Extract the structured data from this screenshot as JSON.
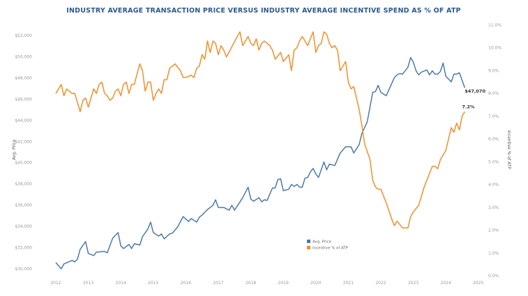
{
  "chart_data": {
    "type": "line",
    "title": "INDUSTRY AVERAGE TRANSACTION PRICE VERSUS INDUSTRY AVERAGE INCENTIVE SPEND AS % OF ATP",
    "xlabel": "",
    "ylabel": "Avg. Price",
    "y2label": "Incentive % of ATP",
    "xlim": [
      "2012",
      "2025"
    ],
    "x_ticks": [
      "2012",
      "2013",
      "2014",
      "2015",
      "2016",
      "2017",
      "2018",
      "2019",
      "2020",
      "2021",
      "2022",
      "2023",
      "2024",
      "2025"
    ],
    "ylim": [
      30000,
      52000
    ],
    "y_ticks": [
      "$30,000",
      "$32,000",
      "$34,000",
      "$36,000",
      "$38,000",
      "$40,000",
      "$42,000",
      "$44,000",
      "$46,000",
      "$48,000",
      "$50,000",
      "$52,000"
    ],
    "y2lim": [
      0,
      11
    ],
    "y2_ticks": [
      "0.0%",
      "1.0%",
      "2.0%",
      "3.0%",
      "4.0%",
      "5.0%",
      "6.0%",
      "7.0%",
      "8.0%",
      "9.0%",
      "10.0%",
      "11.0%"
    ],
    "grid": false,
    "legend": "bottom-center",
    "series": [
      {
        "name": "Avg. Price",
        "axis": "left",
        "color": "#4e79a7",
        "end_label": "$47,070",
        "points": [
          [
            "2012-01",
            30600
          ],
          [
            "2012-03",
            30000
          ],
          [
            "2012-04",
            30460
          ],
          [
            "2012-07",
            30790
          ],
          [
            "2012-08",
            30660
          ],
          [
            "2012-09",
            30920
          ],
          [
            "2012-10",
            31840
          ],
          [
            "2012-12",
            32570
          ],
          [
            "2013-01",
            31450
          ],
          [
            "2013-03",
            31250
          ],
          [
            "2013-04",
            31580
          ],
          [
            "2013-07",
            31640
          ],
          [
            "2013-08",
            31510
          ],
          [
            "2013-10",
            32890
          ],
          [
            "2013-12",
            33420
          ],
          [
            "2014-01",
            32170
          ],
          [
            "2014-02",
            31910
          ],
          [
            "2014-04",
            32300
          ],
          [
            "2014-05",
            31910
          ],
          [
            "2014-06",
            32370
          ],
          [
            "2014-08",
            32240
          ],
          [
            "2014-09",
            33030
          ],
          [
            "2014-11",
            33750
          ],
          [
            "2014-12",
            34410
          ],
          [
            "2015-01",
            33420
          ],
          [
            "2015-03",
            33090
          ],
          [
            "2015-04",
            33290
          ],
          [
            "2015-05",
            32830
          ],
          [
            "2015-07",
            33290
          ],
          [
            "2015-08",
            33360
          ],
          [
            "2015-10",
            33950
          ],
          [
            "2015-12",
            34930
          ],
          [
            "2016-02",
            34470
          ],
          [
            "2016-03",
            34740
          ],
          [
            "2016-05",
            34410
          ],
          [
            "2016-06",
            34870
          ],
          [
            "2016-07",
            35070
          ],
          [
            "2016-09",
            35590
          ],
          [
            "2016-11",
            35990
          ],
          [
            "2016-12",
            36510
          ],
          [
            "2017-01",
            35790
          ],
          [
            "2017-03",
            35790
          ],
          [
            "2017-05",
            35530
          ],
          [
            "2017-06",
            35990
          ],
          [
            "2017-07",
            35530
          ],
          [
            "2017-10",
            36710
          ],
          [
            "2017-12",
            37700
          ],
          [
            "2018-01",
            36580
          ],
          [
            "2018-02",
            36380
          ],
          [
            "2018-04",
            36710
          ],
          [
            "2018-05",
            36320
          ],
          [
            "2018-06",
            36510
          ],
          [
            "2018-07",
            36450
          ],
          [
            "2018-09",
            37630
          ],
          [
            "2018-10",
            37630
          ],
          [
            "2018-11",
            38420
          ],
          [
            "2018-12",
            38490
          ],
          [
            "2019-01",
            37370
          ],
          [
            "2019-03",
            37500
          ],
          [
            "2019-04",
            37960
          ],
          [
            "2019-05",
            37760
          ],
          [
            "2019-06",
            37960
          ],
          [
            "2019-07",
            37700
          ],
          [
            "2019-08",
            37700
          ],
          [
            "2019-09",
            38550
          ],
          [
            "2019-10",
            38620
          ],
          [
            "2019-11",
            39150
          ],
          [
            "2019-12",
            39470
          ],
          [
            "2020-01",
            38950
          ],
          [
            "2020-02",
            38620
          ],
          [
            "2020-04",
            40070
          ],
          [
            "2020-05",
            39340
          ],
          [
            "2020-06",
            39870
          ],
          [
            "2020-08",
            39740
          ],
          [
            "2020-10",
            40920
          ],
          [
            "2020-12",
            41510
          ],
          [
            "2021-02",
            41510
          ],
          [
            "2021-03",
            40920
          ],
          [
            "2021-05",
            41710
          ],
          [
            "2021-06",
            42760
          ],
          [
            "2021-08",
            43880
          ],
          [
            "2021-10",
            46650
          ],
          [
            "2021-11",
            46710
          ],
          [
            "2021-12",
            47300
          ],
          [
            "2022-01",
            46650
          ],
          [
            "2022-03",
            46320
          ],
          [
            "2022-06",
            48030
          ],
          [
            "2022-07",
            48290
          ],
          [
            "2022-08",
            48420
          ],
          [
            "2022-09",
            48360
          ],
          [
            "2022-11",
            49010
          ],
          [
            "2022-12",
            49930
          ],
          [
            "2023-01",
            49470
          ],
          [
            "2023-02",
            48680
          ],
          [
            "2023-03",
            48290
          ],
          [
            "2023-04",
            48550
          ],
          [
            "2023-06",
            48750
          ],
          [
            "2023-07",
            48290
          ],
          [
            "2023-08",
            48680
          ],
          [
            "2023-09",
            48360
          ],
          [
            "2023-10",
            48360
          ],
          [
            "2023-11",
            48620
          ],
          [
            "2023-12",
            49410
          ],
          [
            "2024-01",
            48160
          ],
          [
            "2024-03",
            47630
          ],
          [
            "2024-04",
            48360
          ],
          [
            "2024-05",
            48360
          ],
          [
            "2024-06",
            48490
          ],
          [
            "2024-08",
            47070
          ]
        ]
      },
      {
        "name": "Incentive % of ATP",
        "axis": "right",
        "color": "#f28e2b",
        "end_label": "7.2%",
        "points": [
          [
            "2012-01",
            8.0
          ],
          [
            "2012-03",
            8.4
          ],
          [
            "2012-04",
            7.9
          ],
          [
            "2012-05",
            8.2
          ],
          [
            "2012-07",
            8.0
          ],
          [
            "2012-08",
            8.0
          ],
          [
            "2012-10",
            7.2
          ],
          [
            "2012-11",
            7.7
          ],
          [
            "2012-12",
            7.8
          ],
          [
            "2013-01",
            7.4
          ],
          [
            "2013-03",
            8.2
          ],
          [
            "2013-04",
            8.0
          ],
          [
            "2013-05",
            8.4
          ],
          [
            "2013-06",
            8.5
          ],
          [
            "2013-07",
            8.0
          ],
          [
            "2013-08",
            7.9
          ],
          [
            "2013-09",
            7.7
          ],
          [
            "2013-10",
            7.8
          ],
          [
            "2013-11",
            8.1
          ],
          [
            "2013-12",
            8.2
          ],
          [
            "2014-01",
            7.9
          ],
          [
            "2014-02",
            8.4
          ],
          [
            "2014-03",
            8.5
          ],
          [
            "2014-04",
            8.0
          ],
          [
            "2014-05",
            8.4
          ],
          [
            "2014-06",
            8.4
          ],
          [
            "2014-08",
            9.3
          ],
          [
            "2014-09",
            9.0
          ],
          [
            "2014-10",
            8.1
          ],
          [
            "2014-11",
            8.5
          ],
          [
            "2014-12",
            8.5
          ],
          [
            "2015-01",
            7.7
          ],
          [
            "2015-02",
            8.0
          ],
          [
            "2015-03",
            8.2
          ],
          [
            "2015-04",
            8.0
          ],
          [
            "2015-05",
            8.6
          ],
          [
            "2015-06",
            8.6
          ],
          [
            "2015-07",
            9.1
          ],
          [
            "2015-09",
            9.3
          ],
          [
            "2015-11",
            9.0
          ],
          [
            "2015-12",
            8.7
          ],
          [
            "2016-01",
            8.7
          ],
          [
            "2016-03",
            8.8
          ],
          [
            "2016-04",
            8.7
          ],
          [
            "2016-05",
            9.1
          ],
          [
            "2016-06",
            9.2
          ],
          [
            "2016-07",
            9.7
          ],
          [
            "2016-08",
            9.5
          ],
          [
            "2016-09",
            10.3
          ],
          [
            "2016-10",
            9.8
          ],
          [
            "2016-11",
            10.3
          ],
          [
            "2016-12",
            10.2
          ],
          [
            "2017-01",
            9.7
          ],
          [
            "2017-02",
            10.1
          ],
          [
            "2017-03",
            9.9
          ],
          [
            "2017-04",
            9.6
          ],
          [
            "2017-08",
            10.5
          ],
          [
            "2017-09",
            10.7
          ],
          [
            "2017-10",
            10.1
          ],
          [
            "2017-12",
            10.5
          ],
          [
            "2018-01",
            10.2
          ],
          [
            "2018-02",
            10.1
          ],
          [
            "2018-03",
            10.4
          ],
          [
            "2018-04",
            9.9
          ],
          [
            "2018-05",
            10.2
          ],
          [
            "2018-06",
            10.3
          ],
          [
            "2018-08",
            10.1
          ],
          [
            "2018-09",
            9.9
          ],
          [
            "2018-10",
            9.5
          ],
          [
            "2018-12",
            9.8
          ],
          [
            "2019-01",
            9.4
          ],
          [
            "2019-03",
            9.7
          ],
          [
            "2019-04",
            9.0
          ],
          [
            "2019-05",
            9.9
          ],
          [
            "2019-06",
            10.0
          ],
          [
            "2019-07",
            10.3
          ],
          [
            "2019-08",
            10.5
          ],
          [
            "2019-10",
            10.1
          ],
          [
            "2019-12",
            10.7
          ],
          [
            "2020-01",
            9.8
          ],
          [
            "2020-02",
            10.1
          ],
          [
            "2020-03",
            10.2
          ],
          [
            "2020-04",
            10.7
          ],
          [
            "2020-05",
            10.6
          ],
          [
            "2020-06",
            10.2
          ],
          [
            "2020-07",
            10.0
          ],
          [
            "2020-08",
            10.1
          ],
          [
            "2020-09",
            9.9
          ],
          [
            "2020-10",
            9.0
          ],
          [
            "2020-12",
            9.4
          ],
          [
            "2021-01",
            8.5
          ],
          [
            "2021-02",
            8.2
          ],
          [
            "2021-03",
            8.3
          ],
          [
            "2021-05",
            7.3
          ],
          [
            "2021-06",
            6.6
          ],
          [
            "2021-07",
            5.8
          ],
          [
            "2021-09",
            5.1
          ],
          [
            "2021-10",
            4.2
          ],
          [
            "2021-11",
            3.9
          ],
          [
            "2021-12",
            3.8
          ],
          [
            "2022-01",
            3.8
          ],
          [
            "2022-03",
            3.2
          ],
          [
            "2022-05",
            2.5
          ],
          [
            "2022-06",
            2.2
          ],
          [
            "2022-07",
            2.4
          ],
          [
            "2022-09",
            2.1
          ],
          [
            "2022-11",
            2.1
          ],
          [
            "2022-12",
            2.6
          ],
          [
            "2023-01",
            2.8
          ],
          [
            "2023-03",
            3.1
          ],
          [
            "2023-05",
            3.9
          ],
          [
            "2023-06",
            4.2
          ],
          [
            "2023-08",
            4.8
          ],
          [
            "2023-09",
            4.8
          ],
          [
            "2023-10",
            4.7
          ],
          [
            "2023-11",
            5.1
          ],
          [
            "2023-12",
            5.3
          ],
          [
            "2024-01",
            5.5
          ],
          [
            "2024-03",
            6.5
          ],
          [
            "2024-04",
            6.3
          ],
          [
            "2024-05",
            6.7
          ],
          [
            "2024-06",
            6.4
          ],
          [
            "2024-07",
            7.0
          ],
          [
            "2024-08",
            7.2
          ]
        ]
      }
    ]
  }
}
